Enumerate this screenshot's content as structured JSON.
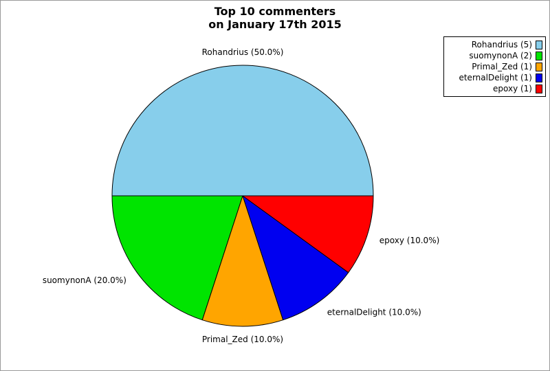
{
  "title": {
    "line1": "Top 10 commenters",
    "line2": "on January 17th 2015"
  },
  "chart_data": {
    "type": "pie",
    "title": "Top 10 commenters on January 17th 2015",
    "start_angle": 0,
    "direction": "counterclockwise",
    "legend_position": "upper right",
    "edge_color": "#000000",
    "slices": [
      {
        "label": "Rohandrius",
        "count": 5,
        "percent": 50.0,
        "color": "#87ceeb",
        "wedge_label": "Rohandrius (50.0%)",
        "legend_label": "Rohandrius (5)"
      },
      {
        "label": "suomynonA",
        "count": 2,
        "percent": 20.0,
        "color": "#00e400",
        "wedge_label": "suomynonA (20.0%)",
        "legend_label": "suomynonA (2)"
      },
      {
        "label": "Primal_Zed",
        "count": 1,
        "percent": 10.0,
        "color": "#ffa500",
        "wedge_label": "Primal_Zed (10.0%)",
        "legend_label": "Primal_Zed (1)"
      },
      {
        "label": "eternalDelight",
        "count": 1,
        "percent": 10.0,
        "color": "#0000f0",
        "wedge_label": "eternalDelight (10.0%)",
        "legend_label": "eternalDelight (1)"
      },
      {
        "label": "epoxy",
        "count": 1,
        "percent": 10.0,
        "color": "#ff0000",
        "wedge_label": "epoxy (10.0%)",
        "legend_label": "epoxy (1)"
      }
    ]
  }
}
